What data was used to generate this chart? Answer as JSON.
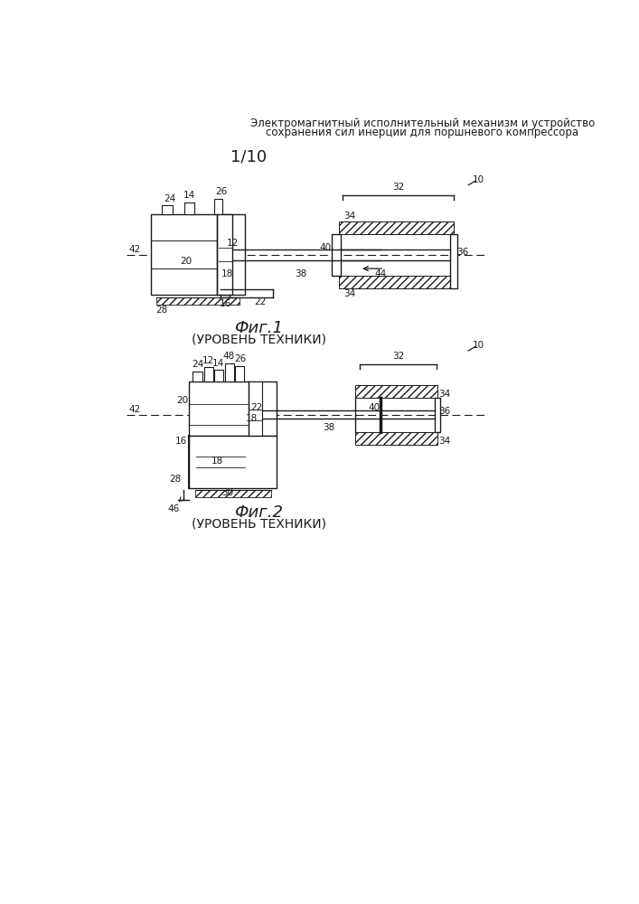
{
  "title_line1": "Электромагнитный исполнительный механизм и устройство",
  "title_line2": "сохранения сил инерции для поршневого компрессора",
  "page_label": "1/10",
  "fig1_label": "Фиг.1",
  "fig1_sublabel": "(УРОВЕНЬ ТЕХНИКИ)",
  "fig2_label": "Фиг.2",
  "fig2_sublabel": "(УРОВЕНЬ ТЕХНИКИ)",
  "bg_color": "#ffffff",
  "line_color": "#1a1a1a",
  "text_color": "#1a1a1a"
}
